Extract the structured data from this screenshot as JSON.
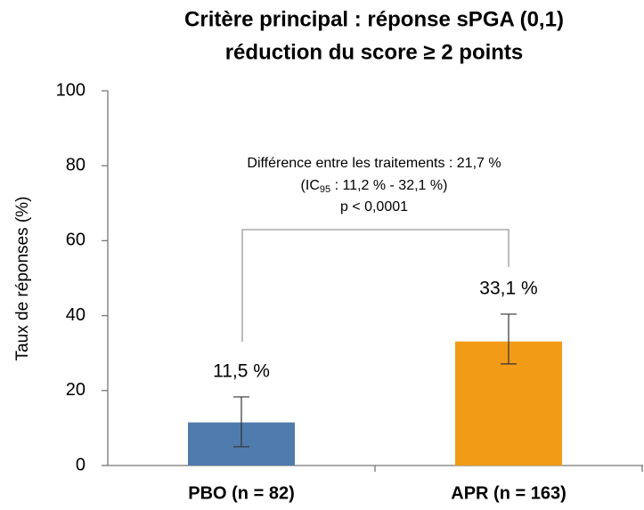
{
  "chart_data": {
    "type": "bar",
    "title": [
      "Critère principal : réponse sPGA (0,1)",
      "réduction du score ≥ 2 points"
    ],
    "y_label": "Taux de réponses (%)",
    "categories": [
      "PBO (n = 82)",
      "APR (n = 163)"
    ],
    "values": [
      11.5,
      33.1
    ],
    "value_labels": [
      "11,5 %",
      "33,1 %"
    ],
    "errors_low": [
      6.5,
      6.0
    ],
    "errors_high": [
      6.8,
      7.3
    ],
    "colors": [
      "#4f7cac",
      "#f29b17"
    ],
    "ylim": [
      0,
      100
    ],
    "yticks": [
      0,
      20,
      40,
      60,
      80,
      100
    ],
    "grid": false,
    "annotation": [
      "Différence entre les traitements : 21,7 %",
      [
        "(IC",
        "95",
        " : 11,2 % - 32,1 %)"
      ],
      "p < 0,0001"
    ]
  }
}
